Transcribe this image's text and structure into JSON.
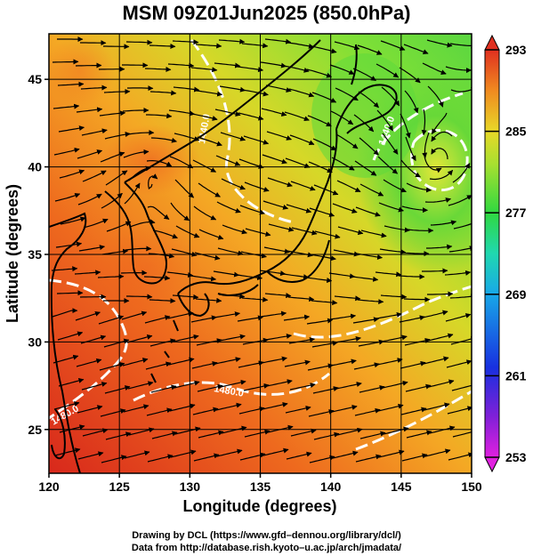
{
  "title": "MSM 09Z01Jun2025 (850.0hPa)",
  "x_axis": {
    "label": "Longitude (degrees)",
    "range": [
      120,
      150
    ],
    "ticks": [
      120,
      125,
      130,
      135,
      140,
      145,
      150
    ]
  },
  "y_axis": {
    "label": "Latitude  (degrees)",
    "range": [
      22.5,
      47.6
    ],
    "ticks": [
      25,
      30,
      35,
      40,
      45
    ]
  },
  "colorbar": {
    "range": [
      253,
      293
    ],
    "ticks": [
      253,
      261,
      269,
      277,
      285,
      293
    ]
  },
  "contours": {
    "labels": [
      "1440.0",
      "1480.0",
      "1440.0",
      "1480.0"
    ],
    "color": "#ffffff"
  },
  "colors": {
    "warm": "#e0321e",
    "mid": "#f0a020",
    "green": "#50d030",
    "coast": "#000000",
    "streamline": "#000000"
  },
  "credits": {
    "line1": "Drawing by DCL (https://www.gfd–dennou.org/library/dcl/)",
    "line2": "Data from http://database.rish.kyoto–u.ac.jp/arch/jmadata/"
  }
}
